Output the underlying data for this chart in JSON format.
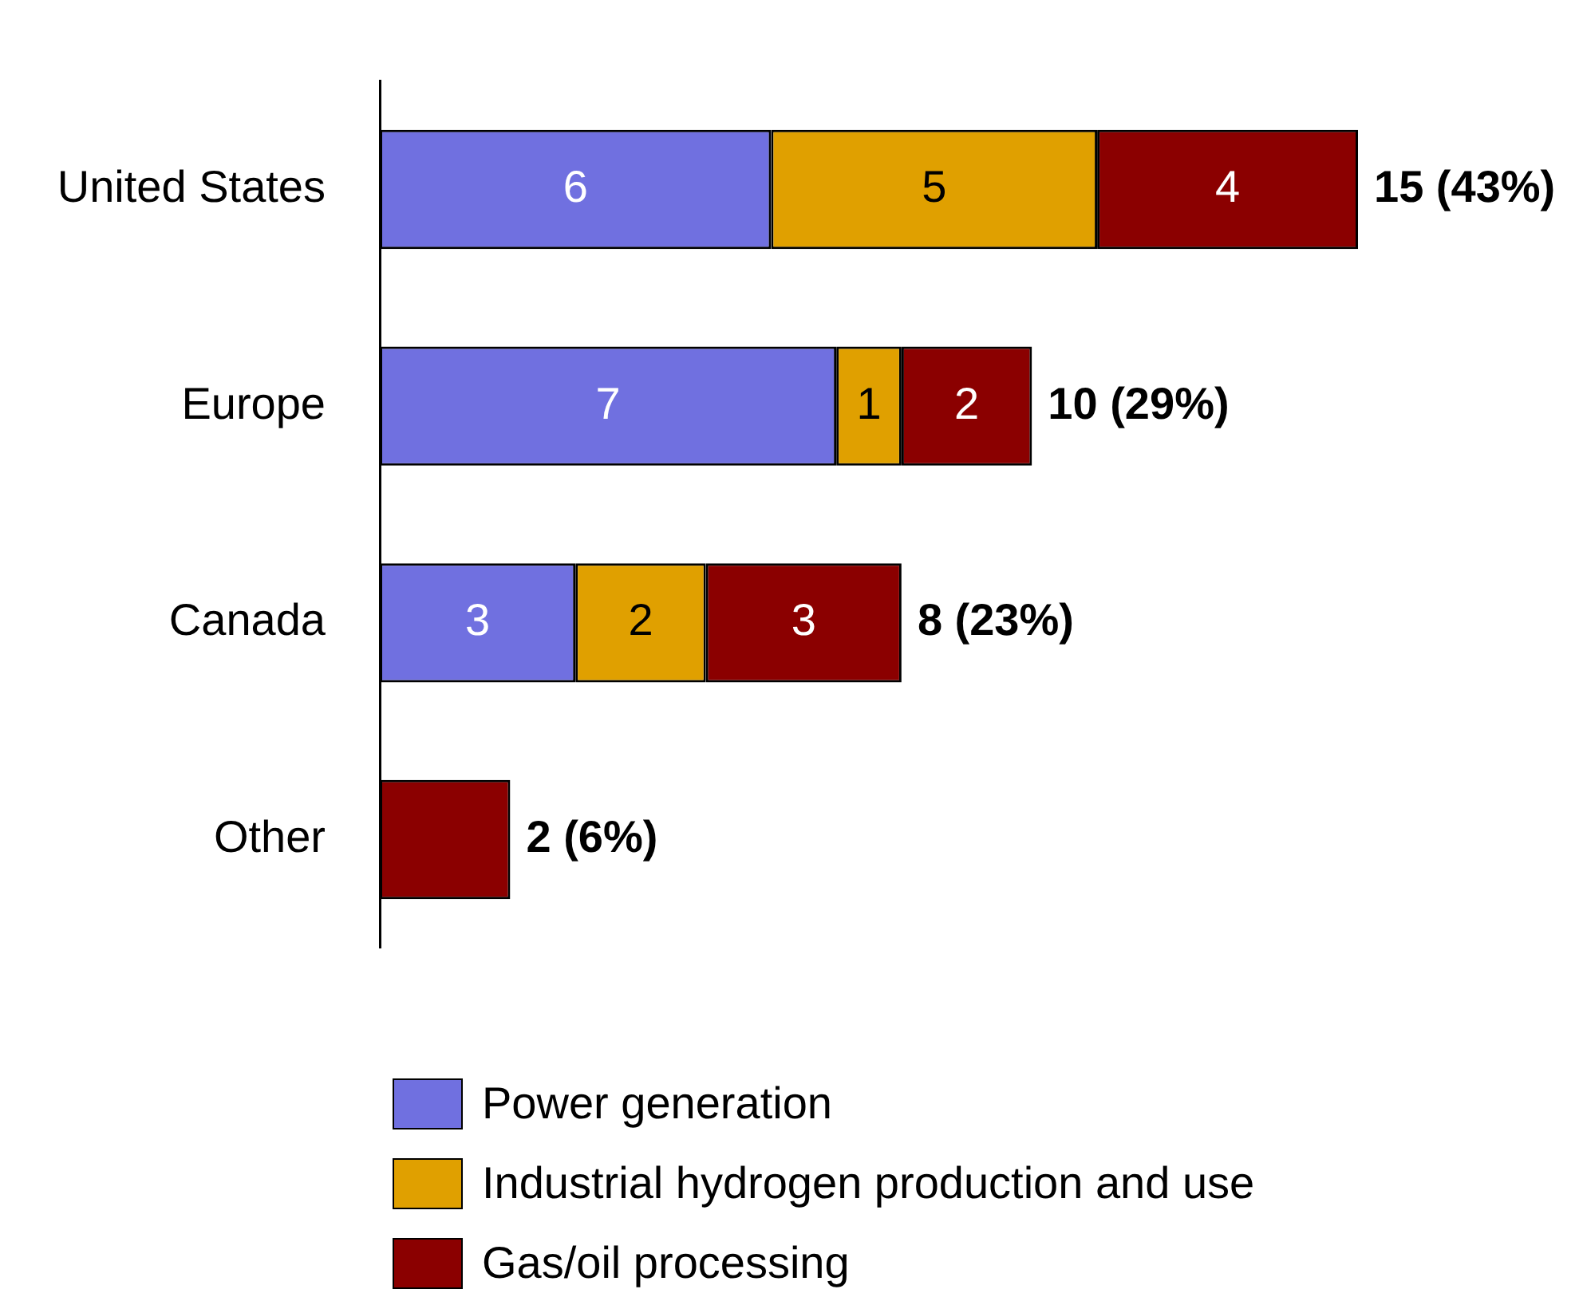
{
  "chart_data": {
    "type": "bar",
    "orientation": "horizontal",
    "stacked": true,
    "legend": "bottom",
    "categories": [
      "United States",
      "Europe",
      "Canada",
      "Other"
    ],
    "series": [
      {
        "name": "Power generation",
        "color": "#7070e0",
        "values": [
          6,
          7,
          3,
          null
        ],
        "value_labels": [
          "6",
          "7",
          "3",
          null
        ]
      },
      {
        "name": "Industrial hydrogen production and use",
        "color": "#e0a000",
        "values": [
          5,
          1,
          2,
          null
        ],
        "value_labels": [
          "5",
          "1",
          "2",
          null
        ]
      },
      {
        "name": "Gas/oil processing",
        "color": "#8b0000",
        "values": [
          4,
          2,
          3,
          2
        ],
        "value_labels": [
          "4",
          "2",
          "3",
          null
        ]
      }
    ],
    "totals": [
      "15 (43%)",
      "10 (29%)",
      "8 (23%)",
      "2 (6%)"
    ]
  }
}
